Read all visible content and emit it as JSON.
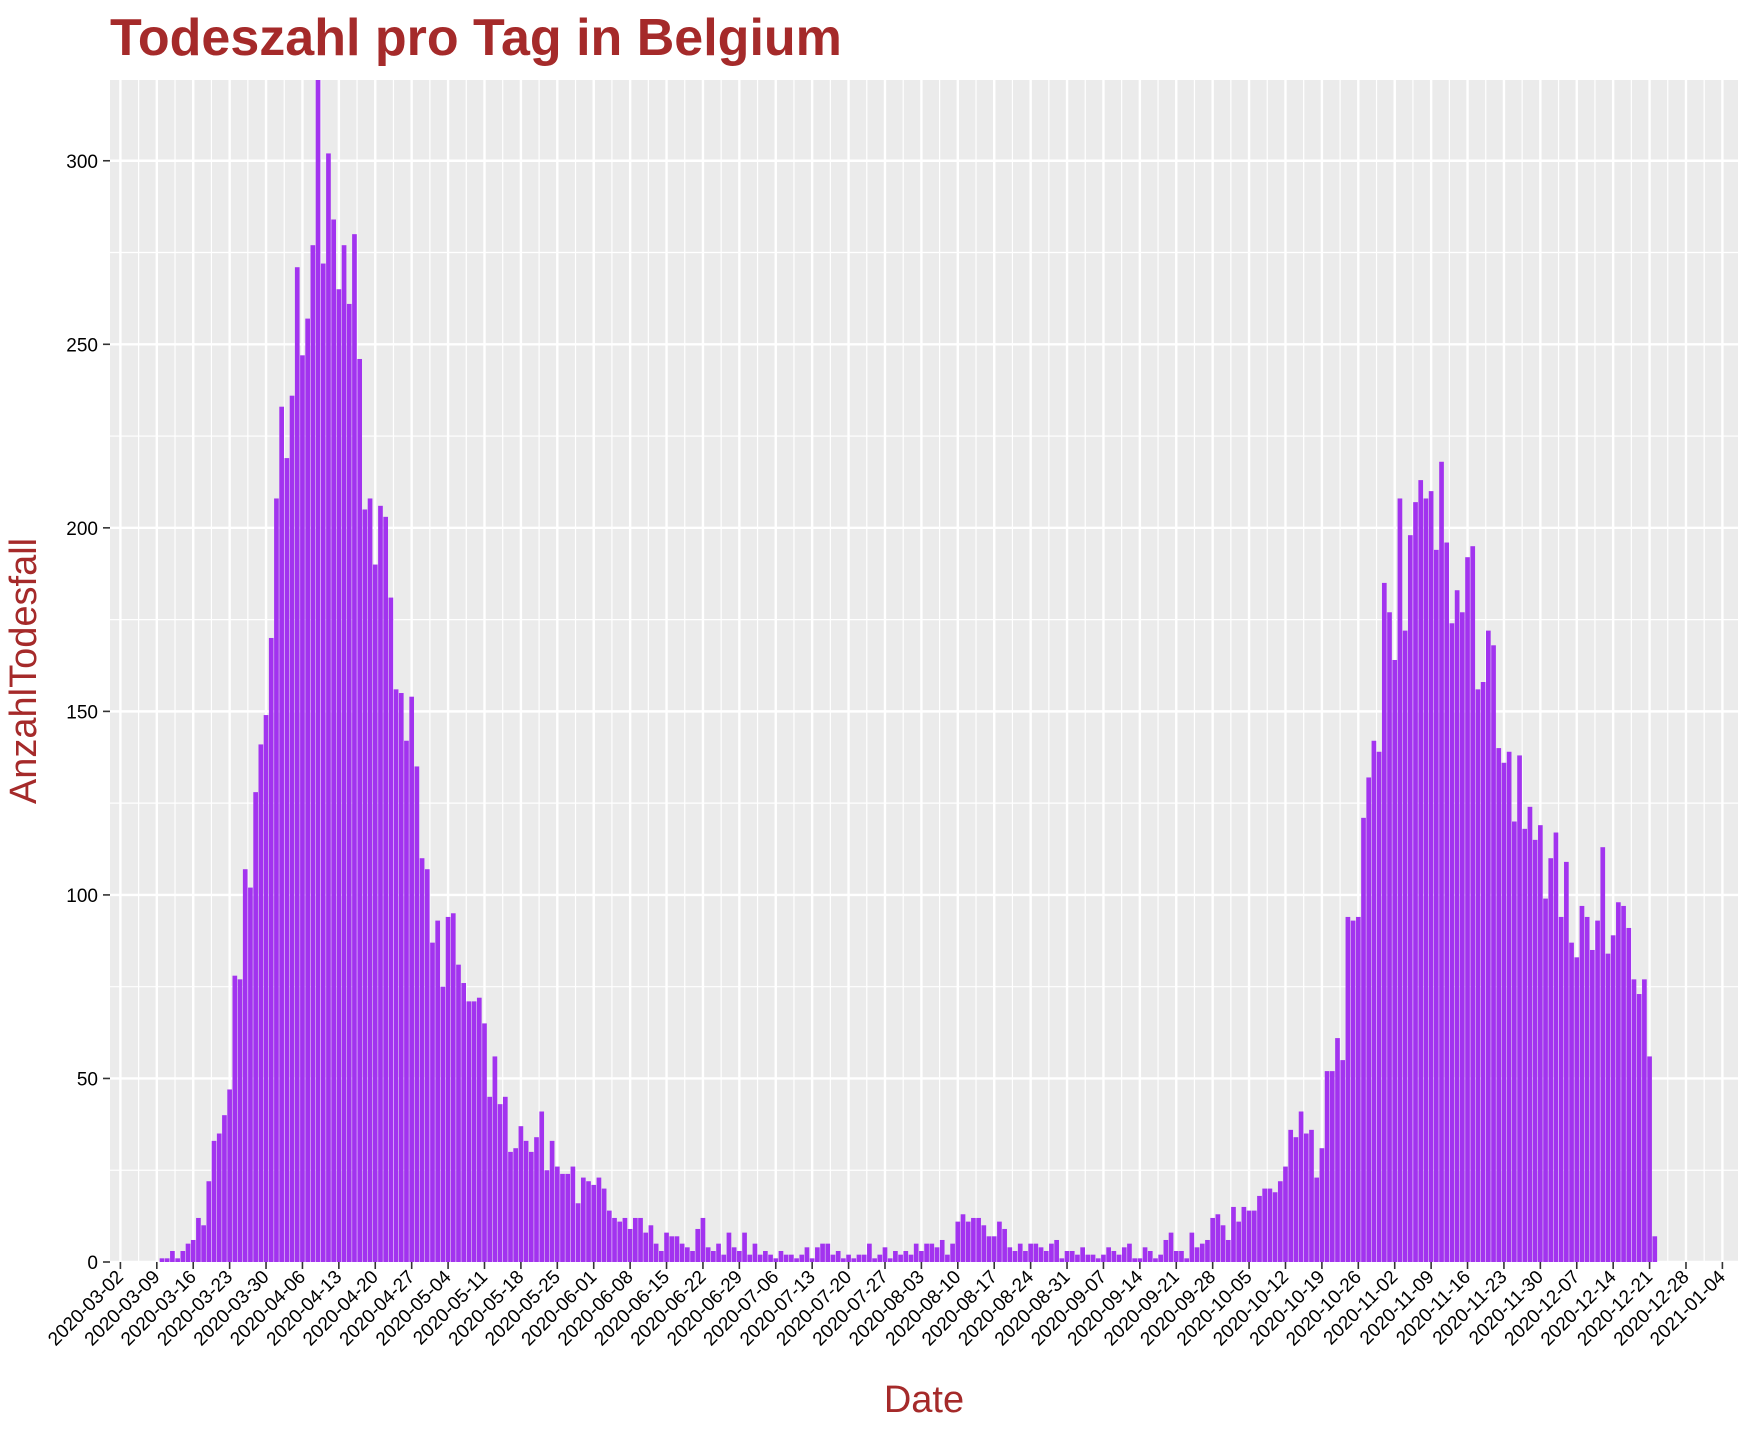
{
  "chart_data": {
    "type": "bar",
    "title": "Todeszahl pro Tag in Belgium",
    "xlabel": "Date",
    "ylabel": "AnzahlTodesfall",
    "x_start": "2020-03-10",
    "values": [
      1,
      1,
      3,
      1,
      3,
      5,
      6,
      12,
      10,
      22,
      33,
      35,
      40,
      47,
      78,
      77,
      107,
      102,
      128,
      141,
      149,
      170,
      208,
      233,
      219,
      236,
      271,
      247,
      257,
      277,
      322,
      272,
      302,
      284,
      265,
      277,
      261,
      280,
      246,
      205,
      208,
      190,
      206,
      203,
      181,
      156,
      155,
      142,
      154,
      135,
      110,
      107,
      87,
      93,
      75,
      94,
      95,
      81,
      76,
      71,
      71,
      72,
      65,
      45,
      56,
      43,
      45,
      30,
      31,
      37,
      33,
      30,
      34,
      41,
      25,
      33,
      26,
      24,
      24,
      26,
      16,
      23,
      22,
      21,
      23,
      20,
      14,
      12,
      11,
      12,
      9,
      12,
      12,
      8,
      10,
      5,
      3,
      8,
      7,
      7,
      5,
      4,
      3,
      9,
      12,
      4,
      3,
      5,
      2,
      8,
      4,
      3,
      8,
      2,
      5,
      2,
      3,
      2,
      1,
      3,
      2,
      2,
      1,
      2,
      4,
      1,
      4,
      5,
      5,
      2,
      3,
      1,
      2,
      1,
      2,
      2,
      5,
      1,
      2,
      4,
      1,
      3,
      2,
      3,
      2,
      5,
      3,
      5,
      5,
      4,
      6,
      2,
      5,
      11,
      13,
      11,
      12,
      12,
      10,
      7,
      7,
      11,
      9,
      4,
      3,
      5,
      3,
      5,
      5,
      4,
      3,
      5,
      6,
      1,
      3,
      3,
      2,
      4,
      2,
      2,
      1,
      2,
      4,
      3,
      2,
      4,
      5,
      1,
      1,
      4,
      3,
      1,
      2,
      6,
      8,
      3,
      3,
      1,
      8,
      4,
      5,
      6,
      12,
      13,
      10,
      6,
      15,
      11,
      15,
      14,
      14,
      18,
      20,
      20,
      19,
      22,
      26,
      36,
      34,
      41,
      35,
      36,
      23,
      31,
      52,
      52,
      61,
      55,
      94,
      93,
      94,
      121,
      132,
      142,
      139,
      185,
      177,
      164,
      208,
      172,
      198,
      207,
      213,
      208,
      210,
      194,
      218,
      196,
      174,
      183,
      177,
      192,
      195,
      156,
      158,
      172,
      168,
      140,
      136,
      139,
      120,
      138,
      118,
      124,
      115,
      119,
      99,
      110,
      117,
      94,
      109,
      87,
      83,
      97,
      94,
      85,
      93,
      113,
      84,
      89,
      98,
      97,
      91,
      77,
      73,
      77,
      56,
      7
    ],
    "x_ticks": [
      "2020-03-02",
      "2020-03-09",
      "2020-03-16",
      "2020-03-23",
      "2020-03-30",
      "2020-04-06",
      "2020-04-13",
      "2020-04-20",
      "2020-04-27",
      "2020-05-04",
      "2020-05-11",
      "2020-05-18",
      "2020-05-25",
      "2020-06-01",
      "2020-06-08",
      "2020-06-15",
      "2020-06-22",
      "2020-06-29",
      "2020-07-06",
      "2020-07-13",
      "2020-07-20",
      "2020-07-27",
      "2020-08-03",
      "2020-08-10",
      "2020-08-17",
      "2020-08-24",
      "2020-08-31",
      "2020-09-07",
      "2020-09-14",
      "2020-09-21",
      "2020-09-28",
      "2020-10-05",
      "2020-10-12",
      "2020-10-19",
      "2020-10-26",
      "2020-11-02",
      "2020-11-09",
      "2020-11-16",
      "2020-11-23",
      "2020-11-30",
      "2020-12-07",
      "2020-12-14",
      "2020-12-21",
      "2020-12-28",
      "2021-01-04"
    ],
    "y_ticks": [
      0,
      50,
      100,
      150,
      200,
      250,
      300
    ],
    "ylim": [
      0,
      322
    ],
    "grid": true,
    "colors": {
      "bar": "#a233ef",
      "panel": "#ebebeb",
      "grid": "#ffffff",
      "title": "#a52a2a"
    }
  }
}
